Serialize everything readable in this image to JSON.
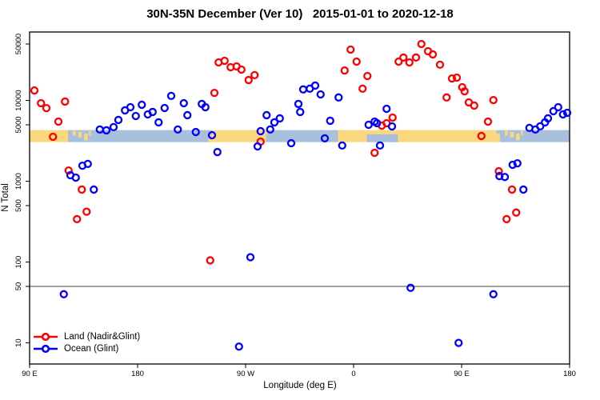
{
  "title": "30N-35N December (Ver 10)   2015-01-01 to 2020-12-18",
  "legend": {
    "items": [
      {
        "label": "Land (Nadir&Glint)",
        "color": "#ff0000"
      },
      {
        "label": "Ocean (Glint)",
        "color": "#0000ff"
      }
    ]
  },
  "chart_data": {
    "type": "scatter",
    "xlabel": "Longitude (deg E)",
    "ylabel": "N Total",
    "x_axis": {
      "min": 90,
      "max": 540,
      "ticks": [
        {
          "v": 90,
          "label": "90 E"
        },
        {
          "v": 180,
          "label": "180"
        },
        {
          "v": 270,
          "label": "90 W"
        },
        {
          "v": 360,
          "label": "0"
        },
        {
          "v": 450,
          "label": "90 E"
        },
        {
          "v": 540,
          "label": "180"
        }
      ]
    },
    "y_axis": {
      "scale": "log",
      "min": 5.5,
      "max": 70000,
      "ticks": [
        {
          "v": 10,
          "label": "10"
        },
        {
          "v": 50,
          "label": "50"
        },
        {
          "v": 100,
          "label": "100"
        },
        {
          "v": 500,
          "label": "500"
        },
        {
          "v": 1000,
          "label": "1000"
        },
        {
          "v": 5000,
          "label": "5000"
        },
        {
          "v": 10000,
          "label": "10000"
        },
        {
          "v": 50000,
          "label": "50000"
        }
      ]
    },
    "reference_line_y": 50,
    "map_strip": {
      "value_top": 4300,
      "value_bottom": 3050,
      "land_color": "#fbd77e",
      "ocean_color": "#a9c0dc",
      "segments": [
        {
          "from": 90,
          "to": 122,
          "type": "land"
        },
        {
          "from": 122,
          "to": 242,
          "type": "ocean"
        },
        {
          "from": 242,
          "to": 287,
          "type": "land"
        },
        {
          "from": 287,
          "to": 347,
          "type": "ocean"
        },
        {
          "from": 347,
          "to": 479,
          "type": "land"
        },
        {
          "from": 479,
          "to": 540,
          "type": "ocean"
        }
      ],
      "patches": [
        {
          "from": 126,
          "to": 128.5,
          "top": 0.05,
          "bottom": 0.45,
          "type": "land"
        },
        {
          "from": 130.5,
          "to": 133.5,
          "top": 0.15,
          "bottom": 0.6,
          "type": "land"
        },
        {
          "from": 135.5,
          "to": 138.5,
          "top": 0.3,
          "bottom": 0.85,
          "type": "land"
        },
        {
          "from": 139.5,
          "to": 141,
          "top": 0.05,
          "bottom": 0.45,
          "type": "land"
        },
        {
          "from": 239,
          "to": 242,
          "top": 0.4,
          "bottom": 1,
          "type": "land"
        },
        {
          "from": 286,
          "to": 289,
          "top": 0,
          "bottom": 0.3,
          "type": "land"
        },
        {
          "from": 371,
          "to": 397,
          "top": 0.35,
          "bottom": 1,
          "type": "ocean"
        },
        {
          "from": 479,
          "to": 482,
          "top": 0.3,
          "bottom": 1,
          "type": "land"
        },
        {
          "from": 486,
          "to": 488.5,
          "top": 0.05,
          "bottom": 0.45,
          "type": "land"
        },
        {
          "from": 490.5,
          "to": 493.5,
          "top": 0.15,
          "bottom": 0.6,
          "type": "land"
        },
        {
          "from": 495.5,
          "to": 498.5,
          "top": 0.3,
          "bottom": 0.85,
          "type": "land"
        },
        {
          "from": 499.5,
          "to": 501,
          "top": 0.05,
          "bottom": 0.45,
          "type": "land"
        }
      ]
    },
    "series": [
      {
        "name": "Land (Nadir&Glint)",
        "color": "#ff0000",
        "points": [
          [
            94,
            13300
          ],
          [
            99.5,
            9250
          ],
          [
            104,
            8050
          ],
          [
            119.5,
            9700
          ],
          [
            114,
            5480
          ],
          [
            109.5,
            3550
          ],
          [
            122.5,
            1360
          ],
          [
            133.5,
            790
          ],
          [
            129.5,
            340
          ],
          [
            137.5,
            420
          ],
          [
            240.5,
            105
          ],
          [
            244,
            12400
          ],
          [
            247.5,
            29600
          ],
          [
            252.5,
            31000
          ],
          [
            257.5,
            25800
          ],
          [
            262.5,
            26400
          ],
          [
            266.5,
            24100
          ],
          [
            272.5,
            17900
          ],
          [
            277.5,
            20600
          ],
          [
            282.5,
            3100
          ],
          [
            352.5,
            23500
          ],
          [
            357.5,
            42600
          ],
          [
            362.5,
            30300
          ],
          [
            367.5,
            14000
          ],
          [
            371.5,
            20100
          ],
          [
            377.5,
            2250
          ],
          [
            383.5,
            4890
          ],
          [
            387.5,
            5230
          ],
          [
            392.5,
            6140
          ],
          [
            397.5,
            30300
          ],
          [
            401.5,
            34000
          ],
          [
            406.5,
            29600
          ],
          [
            412,
            34000
          ],
          [
            416.5,
            50000
          ],
          [
            422,
            40700
          ],
          [
            426,
            37200
          ],
          [
            432,
            27700
          ],
          [
            437.5,
            10900
          ],
          [
            442,
            18700
          ],
          [
            446,
            19200
          ],
          [
            450.5,
            14600
          ],
          [
            452.5,
            13000
          ],
          [
            456,
            9470
          ],
          [
            460.5,
            8650
          ],
          [
            466.5,
            3640
          ],
          [
            472,
            5480
          ],
          [
            476.5,
            10100
          ],
          [
            481,
            1330
          ],
          [
            487.5,
            340
          ],
          [
            492,
            790
          ],
          [
            495.5,
            410
          ]
        ]
      },
      {
        "name": "Ocean (Glint)",
        "color": "#0000ff",
        "points": [
          [
            118.5,
            40
          ],
          [
            124,
            1190
          ],
          [
            128.5,
            1110
          ],
          [
            134,
            1560
          ],
          [
            138.5,
            1640
          ],
          [
            143.5,
            790
          ],
          [
            148.5,
            4370
          ],
          [
            154,
            4270
          ],
          [
            160,
            4680
          ],
          [
            164,
            5740
          ],
          [
            169.5,
            7550
          ],
          [
            174,
            8260
          ],
          [
            178.5,
            6430
          ],
          [
            183.5,
            8850
          ],
          [
            188.5,
            6730
          ],
          [
            192.5,
            7210
          ],
          [
            197.5,
            5360
          ],
          [
            202.5,
            8070
          ],
          [
            208,
            11400
          ],
          [
            213.5,
            4370
          ],
          [
            218.5,
            9250
          ],
          [
            221.5,
            6580
          ],
          [
            228.5,
            4070
          ],
          [
            233.5,
            9060
          ],
          [
            236.5,
            8260
          ],
          [
            242,
            3720
          ],
          [
            246.5,
            2300
          ],
          [
            264.5,
            9
          ],
          [
            274,
            115
          ],
          [
            280,
            2700
          ],
          [
            282.5,
            4170
          ],
          [
            287.5,
            6580
          ],
          [
            290.5,
            4370
          ],
          [
            294,
            5360
          ],
          [
            298.5,
            6010
          ],
          [
            308,
            2960
          ],
          [
            314,
            9060
          ],
          [
            315.5,
            7210
          ],
          [
            318,
            13700
          ],
          [
            323.5,
            14000
          ],
          [
            328,
            15300
          ],
          [
            332.5,
            11900
          ],
          [
            336,
            3400
          ],
          [
            340.5,
            5610
          ],
          [
            347.5,
            10900
          ],
          [
            350.5,
            2770
          ],
          [
            372.5,
            5000
          ],
          [
            377.5,
            5480
          ],
          [
            379.5,
            5230
          ],
          [
            382,
            2770
          ],
          [
            387.5,
            7890
          ],
          [
            392,
            4780
          ],
          [
            407.5,
            48
          ],
          [
            447.5,
            10
          ],
          [
            476.5,
            40
          ],
          [
            481.5,
            1160
          ],
          [
            486,
            1130
          ],
          [
            492.5,
            1600
          ],
          [
            496.5,
            1670
          ],
          [
            501.5,
            790
          ],
          [
            506.5,
            4580
          ],
          [
            511.5,
            4370
          ],
          [
            515.5,
            4790
          ],
          [
            519.5,
            5360
          ],
          [
            522,
            6010
          ],
          [
            526.5,
            7380
          ],
          [
            530.5,
            8260
          ],
          [
            534.5,
            6730
          ],
          [
            538,
            7040
          ]
        ]
      }
    ]
  }
}
